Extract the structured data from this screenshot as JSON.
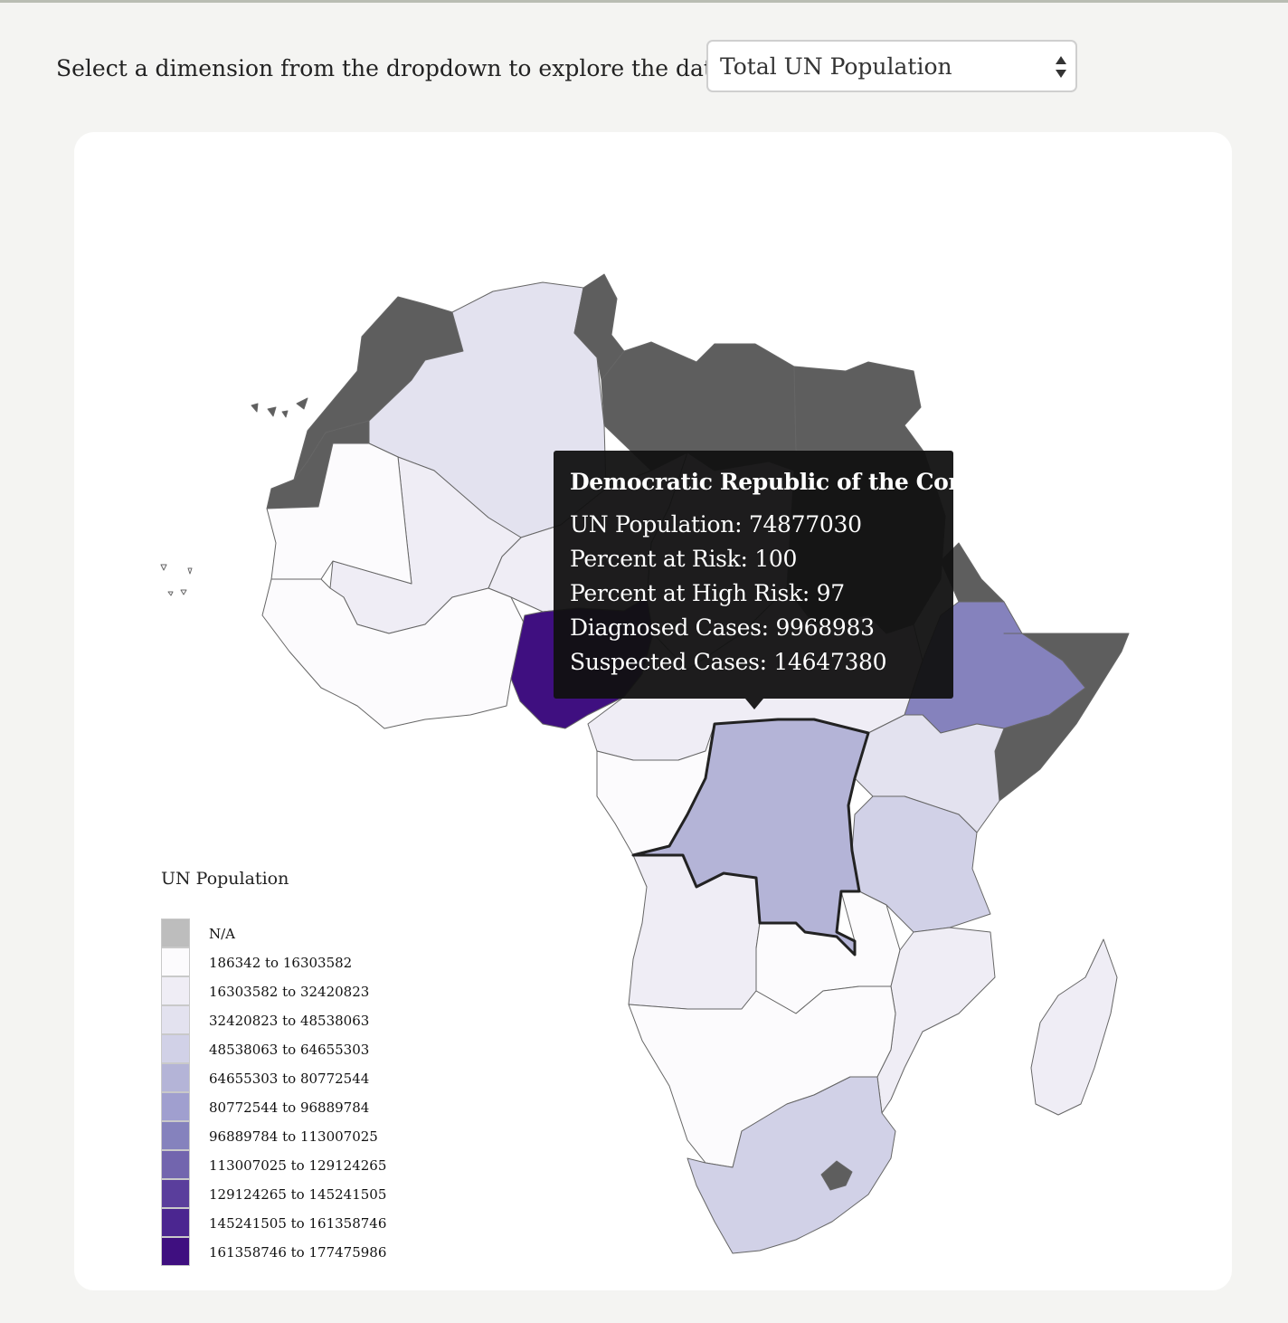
{
  "controls": {
    "prompt": "Select a dimension from the dropdown to explore the data:",
    "selected": "Total UN Population"
  },
  "colors": {
    "na": "#5e5e5e",
    "scale": [
      "#fcfbfd",
      "#efedf5",
      "#e3e2ef",
      "#d1d1e7",
      "#b4b4d7",
      "#a09fcf",
      "#8582bd",
      "#7265ae",
      "#5a3e9c",
      "#4b2690",
      "#3f0f80"
    ],
    "highlight_outline": "#222222"
  },
  "tooltip": {
    "country": "Democratic Republic of the Congo",
    "rows": [
      {
        "label": "UN Population",
        "value": "74877030"
      },
      {
        "label": "Percent at Risk",
        "value": "100"
      },
      {
        "label": "Percent at High Risk",
        "value": "97"
      },
      {
        "label": "Diagnosed Cases",
        "value": "9968983"
      },
      {
        "label": "Suspected Cases",
        "value": "14647380"
      }
    ]
  },
  "legend": {
    "title": "UN Population",
    "items": [
      {
        "label": "N/A",
        "color": "#bdbdbd"
      },
      {
        "label": "186342 to 16303582",
        "color": "#fcfbfd"
      },
      {
        "label": "16303582 to 32420823",
        "color": "#efedf5"
      },
      {
        "label": "32420823 to 48538063",
        "color": "#e3e2ef"
      },
      {
        "label": "48538063 to 64655303",
        "color": "#d1d1e7"
      },
      {
        "label": "64655303 to 80772544",
        "color": "#b4b4d7"
      },
      {
        "label": "80772544 to 96889784",
        "color": "#a09fcf"
      },
      {
        "label": "96889784 to 113007025",
        "color": "#8582bd"
      },
      {
        "label": "113007025 to 129124265",
        "color": "#7265ae"
      },
      {
        "label": "129124265 to 145241505",
        "color": "#5a3e9c"
      },
      {
        "label": "145241505 to 161358746",
        "color": "#4b2690"
      },
      {
        "label": "161358746 to 177475986",
        "color": "#3f0f80"
      }
    ]
  },
  "map": {
    "regions": [
      {
        "name": "Morocco",
        "bin": "na"
      },
      {
        "name": "Western Sahara",
        "bin": "na"
      },
      {
        "name": "Algeria",
        "bin": 2
      },
      {
        "name": "Tunisia",
        "bin": "na"
      },
      {
        "name": "Libya",
        "bin": "na"
      },
      {
        "name": "Egypt",
        "bin": "na"
      },
      {
        "name": "Mauritania",
        "bin": 0
      },
      {
        "name": "Mali",
        "bin": 1
      },
      {
        "name": "Niger",
        "bin": 1
      },
      {
        "name": "Chad",
        "bin": 1
      },
      {
        "name": "Sudan",
        "bin": "na"
      },
      {
        "name": "Eritrea",
        "bin": "na"
      },
      {
        "name": "Ethiopia",
        "bin": 6
      },
      {
        "name": "Somalia",
        "bin": "na"
      },
      {
        "name": "Somaliland",
        "bin": "na"
      },
      {
        "name": "Nigeria",
        "bin": 10
      },
      {
        "name": "Democratic Republic of the Congo",
        "bin": 4
      },
      {
        "name": "Tanzania",
        "bin": 3
      },
      {
        "name": "Kenya",
        "bin": 2
      },
      {
        "name": "Uganda",
        "bin": 2
      },
      {
        "name": "Angola",
        "bin": 1
      },
      {
        "name": "Zambia",
        "bin": 0
      },
      {
        "name": "Mozambique",
        "bin": 1
      },
      {
        "name": "Madagascar",
        "bin": 1
      },
      {
        "name": "South Africa",
        "bin": 3
      },
      {
        "name": "Lesotho",
        "bin": "na"
      }
    ]
  }
}
